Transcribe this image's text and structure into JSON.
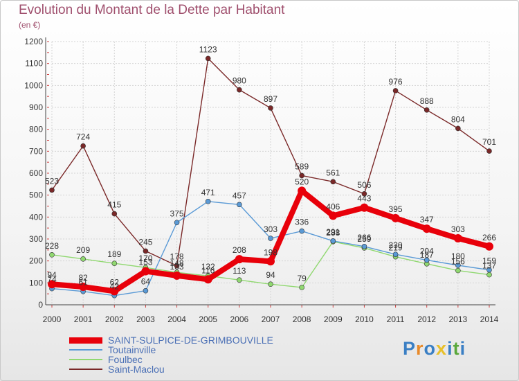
{
  "title": "Evolution du Montant de la Dette par Habitant",
  "unit": "(en €)",
  "brand": {
    "letters": [
      "P",
      "r",
      "o",
      "x",
      "i",
      "t",
      "i"
    ],
    "colors": [
      "#3a7fc4",
      "#e88a2a",
      "#3a7fc4",
      "#e8c02a",
      "#3a7fc4",
      "#5aa83c",
      "#3a7fc4"
    ]
  },
  "chart_data": {
    "type": "line",
    "title": "Evolution du Montant de la Dette par Habitant",
    "ylabel": "(en €)",
    "ylim": [
      0,
      1200
    ],
    "yticks": [
      0,
      100,
      200,
      300,
      400,
      500,
      600,
      700,
      800,
      900,
      1000,
      1100,
      1200
    ],
    "grid": true,
    "legend": "bottom-left",
    "x": [
      2000,
      2001,
      2002,
      2003,
      2004,
      2005,
      2006,
      2007,
      2008,
      2009,
      2010,
      2011,
      2012,
      2013,
      2014
    ],
    "series": [
      {
        "name": "SAINT-SULPICE-DE-GRIMBOUVILLE",
        "color": "#e8000a",
        "values": [
          94,
          82,
          62,
          153,
          133,
          116,
          208,
          198,
          520,
          406,
          443,
          395,
          347,
          303,
          266
        ]
      },
      {
        "name": "Toutainville",
        "color": "#5a9ad6",
        "values": [
          74,
          61,
          42,
          64,
          375,
          471,
          457,
          303,
          336,
          291,
          266,
          230,
          204,
          180,
          159
        ]
      },
      {
        "name": "Foulbec",
        "color": "#90d870",
        "values": [
          228,
          209,
          189,
          170,
          148,
          132,
          113,
          94,
          79,
          288,
          259,
          219,
          187,
          156,
          137
        ]
      },
      {
        "name": "Saint-Maclou",
        "color": "#7a2828",
        "values": [
          523,
          724,
          415,
          245,
          178,
          1123,
          980,
          897,
          589,
          561,
          506,
          976,
          888,
          804,
          701
        ]
      }
    ]
  }
}
